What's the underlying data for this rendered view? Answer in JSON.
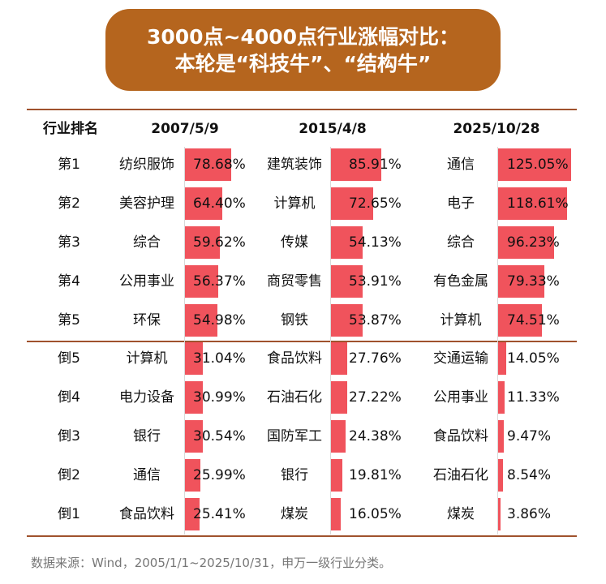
{
  "title": {
    "line1": "3000点~4000点行业涨幅对比：",
    "line2": "本轮是“科技牛”、“结构牛”"
  },
  "headers": [
    "行业排名",
    "2007/5/9",
    "2015/4/8",
    "2025/10/28"
  ],
  "rows": [
    {
      "rank": "第1",
      "c": [
        {
          "name": "纺织服饰",
          "pct": "78.68%",
          "v": 78.68
        },
        {
          "name": "建筑装饰",
          "pct": "85.91%",
          "v": 85.91
        },
        {
          "name": "通信",
          "pct": "125.05%",
          "v": 125.05
        }
      ]
    },
    {
      "rank": "第2",
      "c": [
        {
          "name": "美容护理",
          "pct": "64.40%",
          "v": 64.4
        },
        {
          "name": "计算机",
          "pct": "72.65%",
          "v": 72.65
        },
        {
          "name": "电子",
          "pct": "118.61%",
          "v": 118.61
        }
      ]
    },
    {
      "rank": "第3",
      "c": [
        {
          "name": "综合",
          "pct": "59.62%",
          "v": 59.62
        },
        {
          "name": "传媒",
          "pct": "54.13%",
          "v": 54.13
        },
        {
          "name": "综合",
          "pct": "96.23%",
          "v": 96.23
        }
      ]
    },
    {
      "rank": "第4",
      "c": [
        {
          "name": "公用事业",
          "pct": "56.37%",
          "v": 56.37
        },
        {
          "name": "商贸零售",
          "pct": "53.91%",
          "v": 53.91
        },
        {
          "name": "有色金属",
          "pct": "79.33%",
          "v": 79.33
        }
      ]
    },
    {
      "rank": "第5",
      "c": [
        {
          "name": "环保",
          "pct": "54.98%",
          "v": 54.98
        },
        {
          "name": "钢铁",
          "pct": "53.87%",
          "v": 53.87
        },
        {
          "name": "计算机",
          "pct": "74.51%",
          "v": 74.51
        }
      ]
    },
    {
      "rank": "倒5",
      "c": [
        {
          "name": "计算机",
          "pct": "31.04%",
          "v": 31.04
        },
        {
          "name": "食品饮料",
          "pct": "27.76%",
          "v": 27.76
        },
        {
          "name": "交通运输",
          "pct": "14.05%",
          "v": 14.05
        }
      ]
    },
    {
      "rank": "倒4",
      "c": [
        {
          "name": "电力设备",
          "pct": "30.99%",
          "v": 30.99
        },
        {
          "name": "石油石化",
          "pct": "27.22%",
          "v": 27.22
        },
        {
          "name": "公用事业",
          "pct": "11.33%",
          "v": 11.33
        }
      ]
    },
    {
      "rank": "倒3",
      "c": [
        {
          "name": "银行",
          "pct": "30.54%",
          "v": 30.54
        },
        {
          "name": "国防军工",
          "pct": "24.38%",
          "v": 24.38
        },
        {
          "name": "食品饮料",
          "pct": "9.47%",
          "v": 9.47
        }
      ]
    },
    {
      "rank": "倒2",
      "c": [
        {
          "name": "通信",
          "pct": "25.99%",
          "v": 25.99
        },
        {
          "name": "银行",
          "pct": "19.81%",
          "v": 19.81
        },
        {
          "name": "石油石化",
          "pct": "8.54%",
          "v": 8.54
        }
      ]
    },
    {
      "rank": "倒1",
      "c": [
        {
          "name": "食品饮料",
          "pct": "25.41%",
          "v": 25.41
        },
        {
          "name": "煤炭",
          "pct": "16.05%",
          "v": 16.05
        },
        {
          "name": "煤炭",
          "pct": "3.86%",
          "v": 3.86
        }
      ]
    }
  ],
  "bar_color": "#f0535c",
  "accent_color": "#b5651e",
  "source": "数据来源：Wind，2005/1/1~2025/10/31，申万一级行业分类。"
}
